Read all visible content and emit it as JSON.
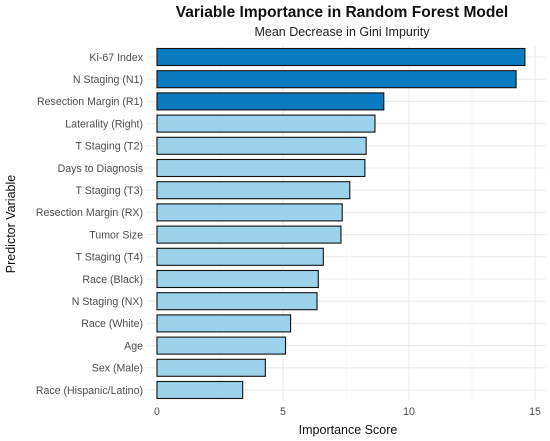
{
  "chart_data": {
    "type": "bar",
    "orientation": "horizontal",
    "title": "Variable Importance in Random Forest Model",
    "subtitle": "Mean Decrease in Gini Impurity",
    "xlabel": "Importance Score",
    "ylabel": "Predictor Variable",
    "xlim": [
      0,
      15
    ],
    "xticks": [
      0,
      5,
      10,
      15
    ],
    "grid": true,
    "colors": {
      "top": "#0A7BBF",
      "other": "#9DD3EA",
      "outline": "#111111"
    },
    "categories": [
      "Ki-67 Index",
      "N Staging (N1)",
      "Resection Margin (R1)",
      "Laterality (Right)",
      "T Staging (T2)",
      "Days to Diagnosis",
      "T Staging (T3)",
      "Resection Margin (RX)",
      "Tumor Size",
      "T Staging (T4)",
      "Race (Black)",
      "N Staging (NX)",
      "Race (White)",
      "Age",
      "Sex (Male)",
      "Race (Hispanic/Latino)"
    ],
    "values": [
      14.6,
      14.25,
      9.0,
      8.65,
      8.3,
      8.25,
      7.65,
      7.35,
      7.3,
      6.6,
      6.4,
      6.35,
      5.3,
      5.1,
      4.3,
      3.4
    ],
    "highlighted_count": 3
  }
}
